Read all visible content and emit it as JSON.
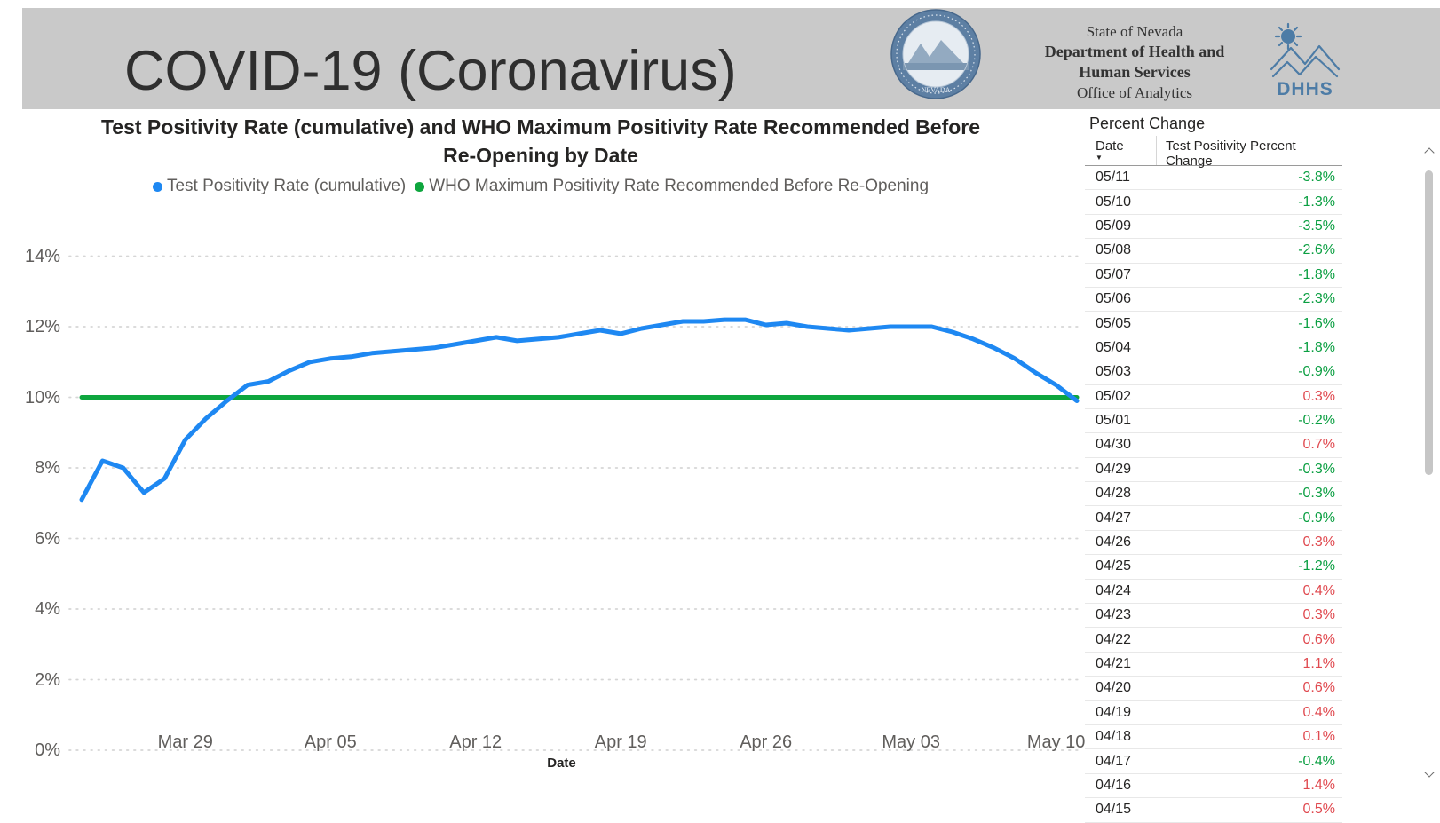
{
  "header": {
    "title_main": "COVID-19",
    "title_paren": " (Coronavirus)",
    "seal_text": "NEVADA",
    "org_line1": "State of Nevada",
    "org_line2": "Department of Health and",
    "org_line3": "Human Services",
    "org_line4": "Office of Analytics",
    "dhhs_logo_text": "DHHS"
  },
  "chart": {
    "title_line1": "Test Positivity Rate (cumulative) and WHO Maximum Positivity Rate Recommended Before",
    "title_line2": "Re-Opening by Date",
    "x_axis_title": "Date",
    "y_ticks": [
      "14%",
      "12%",
      "10%",
      "8%",
      "6%",
      "4%",
      "2%",
      "0%"
    ],
    "x_ticks": [
      {
        "label": "Mar 29",
        "date": "03/29"
      },
      {
        "label": "Apr 05",
        "date": "04/05"
      },
      {
        "label": "Apr 12",
        "date": "04/12"
      },
      {
        "label": "Apr 19",
        "date": "04/19"
      },
      {
        "label": "Apr 26",
        "date": "04/26"
      },
      {
        "label": "May 03",
        "date": "05/03"
      },
      {
        "label": "May 10",
        "date": "05/10"
      }
    ],
    "legend": [
      {
        "label": "Test Positivity Rate (cumulative)",
        "color": "#1E88F2"
      },
      {
        "label": "WHO Maximum Positivity Rate Recommended Before Re-Opening",
        "color": "#0EA63E"
      }
    ]
  },
  "chart_data": {
    "type": "line",
    "title": "Test Positivity Rate (cumulative) and WHO Maximum Positivity Rate Recommended Before Re-Opening by Date",
    "xlabel": "Date",
    "ylabel": "",
    "ylim": [
      0,
      14
    ],
    "grid": "horizontal-dotted",
    "legend_position": "top-center",
    "x": [
      "03/24",
      "03/25",
      "03/26",
      "03/27",
      "03/28",
      "03/29",
      "03/30",
      "03/31",
      "04/01",
      "04/02",
      "04/03",
      "04/04",
      "04/05",
      "04/06",
      "04/07",
      "04/08",
      "04/09",
      "04/10",
      "04/11",
      "04/12",
      "04/13",
      "04/14",
      "04/15",
      "04/16",
      "04/17",
      "04/18",
      "04/19",
      "04/20",
      "04/21",
      "04/22",
      "04/23",
      "04/24",
      "04/25",
      "04/26",
      "04/27",
      "04/28",
      "04/29",
      "04/30",
      "05/01",
      "05/02",
      "05/03",
      "05/04",
      "05/05",
      "05/06",
      "05/07",
      "05/08",
      "05/09",
      "05/10",
      "05/11"
    ],
    "series": [
      {
        "name": "Test Positivity Rate (cumulative)",
        "unit": "%",
        "values": [
          7.1,
          8.2,
          8.0,
          7.3,
          7.7,
          8.8,
          9.4,
          9.9,
          10.35,
          10.45,
          10.75,
          11.0,
          11.1,
          11.15,
          11.25,
          11.3,
          11.35,
          11.4,
          11.5,
          11.6,
          11.7,
          11.6,
          11.65,
          11.7,
          11.8,
          11.9,
          11.8,
          11.95,
          12.05,
          12.15,
          12.15,
          12.2,
          12.2,
          12.05,
          12.1,
          12.0,
          11.95,
          11.9,
          11.95,
          12.0,
          12.0,
          12.0,
          11.85,
          11.65,
          11.4,
          11.1,
          10.7,
          10.35,
          9.9
        ]
      },
      {
        "name": "WHO Maximum Positivity Rate Recommended Before Re-Opening",
        "unit": "%",
        "constant_value": 10
      }
    ]
  },
  "table": {
    "title": "Percent Change",
    "columns": [
      "Date",
      "Test Positivity Percent Change"
    ],
    "sorted_by": "Date",
    "sort_direction": "descending",
    "rows": [
      {
        "date": "05/11",
        "value": "-3.8%"
      },
      {
        "date": "05/10",
        "value": "-1.3%"
      },
      {
        "date": "05/09",
        "value": "-3.5%"
      },
      {
        "date": "05/08",
        "value": "-2.6%"
      },
      {
        "date": "05/07",
        "value": "-1.8%"
      },
      {
        "date": "05/06",
        "value": "-2.3%"
      },
      {
        "date": "05/05",
        "value": "-1.6%"
      },
      {
        "date": "05/04",
        "value": "-1.8%"
      },
      {
        "date": "05/03",
        "value": "-0.9%"
      },
      {
        "date": "05/02",
        "value": "0.3%"
      },
      {
        "date": "05/01",
        "value": "-0.2%"
      },
      {
        "date": "04/30",
        "value": "0.7%"
      },
      {
        "date": "04/29",
        "value": "-0.3%"
      },
      {
        "date": "04/28",
        "value": "-0.3%"
      },
      {
        "date": "04/27",
        "value": "-0.9%"
      },
      {
        "date": "04/26",
        "value": "0.3%"
      },
      {
        "date": "04/25",
        "value": "-1.2%"
      },
      {
        "date": "04/24",
        "value": "0.4%"
      },
      {
        "date": "04/23",
        "value": "0.3%"
      },
      {
        "date": "04/22",
        "value": "0.6%"
      },
      {
        "date": "04/21",
        "value": "1.1%"
      },
      {
        "date": "04/20",
        "value": "0.6%"
      },
      {
        "date": "04/19",
        "value": "0.4%"
      },
      {
        "date": "04/18",
        "value": "0.1%"
      },
      {
        "date": "04/17",
        "value": "-0.4%"
      },
      {
        "date": "04/16",
        "value": "1.4%"
      },
      {
        "date": "04/15",
        "value": "0.5%"
      }
    ]
  },
  "colors": {
    "header_bg": "#c9c9c9",
    "series_blue": "#1E88F2",
    "who_green": "#0EA63E",
    "gridline": "#d6d6d6",
    "axis_text": "#605e5c",
    "title_text": "#252423",
    "table_negative_green": "#0b9f42",
    "table_positive_red": "#e04a50",
    "logo_blue": "#4d7ca6"
  }
}
